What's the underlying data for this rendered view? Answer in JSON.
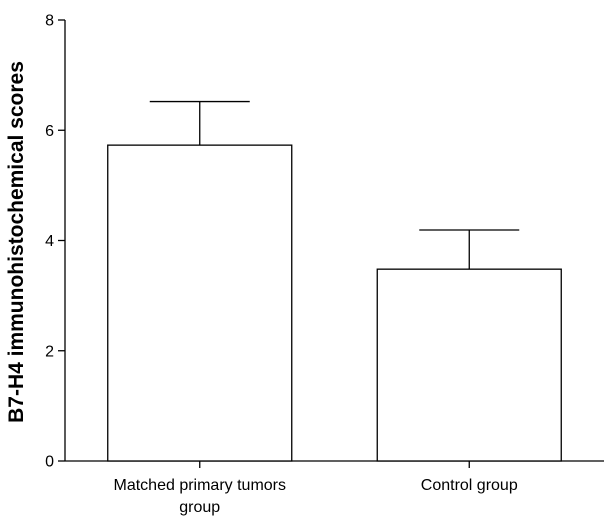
{
  "chart_data": {
    "type": "bar",
    "categories": [
      [
        "Matched primary tumors",
        "group"
      ],
      [
        "Control group"
      ]
    ],
    "values": [
      5.73,
      3.48
    ],
    "error_upper": [
      6.52,
      4.19
    ],
    "title": "",
    "xlabel": "",
    "ylabel": "B7-H4 immunohistochemical scores",
    "ylim": [
      0,
      8
    ],
    "yticks": [
      0,
      2,
      4,
      6,
      8
    ],
    "grid": false,
    "bar_fill": "#ffffff",
    "bar_stroke": "#000000",
    "axis_color": "#000000"
  }
}
